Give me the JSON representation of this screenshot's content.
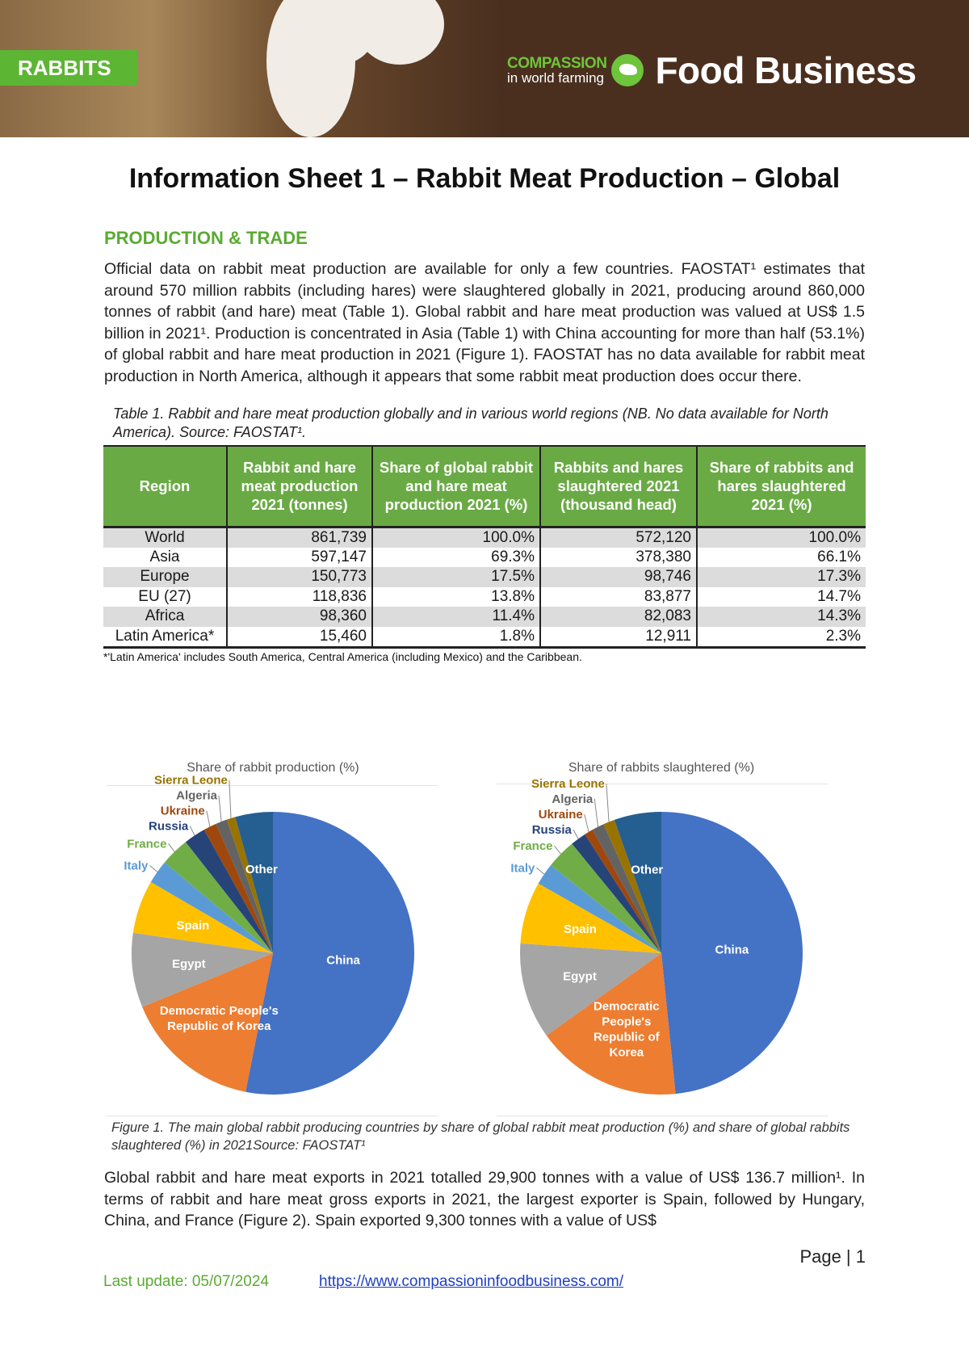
{
  "header": {
    "tag": "RABBITS",
    "logo_line1": "COMPASSION",
    "logo_line2": "in world farming",
    "logo_brand": "Food Business"
  },
  "title": "Information Sheet 1 – Rabbit Meat Production – Global",
  "section_heading": "PRODUCTION & TRADE",
  "paragraph1": "Official data on rabbit meat production are available for only a few countries. FAOSTAT¹ estimates that around 570 million rabbits (including hares) were slaughtered globally in 2021, producing around 860,000 tonnes of rabbit (and hare) meat (Table 1). Global rabbit and hare meat production was valued at US$ 1.5 billion in 2021¹. Production is concentrated in Asia (Table 1) with China accounting for more than half (53.1%) of global rabbit and hare meat production in 2021 (Figure 1). FAOSTAT has no data available for rabbit meat production in North America, although it appears that some rabbit meat production does occur there.",
  "table": {
    "caption": "Table 1. Rabbit and hare meat production globally and in various world regions (NB. No data available for North America). Source: FAOSTAT¹.",
    "headers": [
      "Region",
      "Rabbit and hare meat production 2021 (tonnes)",
      "Share of global rabbit and hare meat production 2021 (%)",
      "Rabbits and hares slaughtered 2021 (thousand head)",
      "Share of rabbits and hares slaughtered 2021 (%)"
    ],
    "rows": [
      [
        "World",
        "861,739",
        "100.0%",
        "572,120",
        "100.0%"
      ],
      [
        "Asia",
        "597,147",
        "69.3%",
        "378,380",
        "66.1%"
      ],
      [
        "Europe",
        "150,773",
        "17.5%",
        "98,746",
        "17.3%"
      ],
      [
        "EU (27)",
        "118,836",
        "13.8%",
        "83,877",
        "14.7%"
      ],
      [
        "Africa",
        "98,360",
        "11.4%",
        "82,083",
        "14.3%"
      ],
      [
        "Latin America*",
        "15,460",
        "1.8%",
        "12,911",
        "2.3%"
      ]
    ],
    "footnote": "*'Latin America' includes South America, Central America (including Mexico) and the Caribbean."
  },
  "chart_data": [
    {
      "type": "pie",
      "title": "Share of rabbit production (%)",
      "labels": [
        "China",
        "Democratic People's Republic of Korea",
        "Egypt",
        "Spain",
        "Italy",
        "France",
        "Russia",
        "Ukraine",
        "Algeria",
        "Sierra Leone",
        "Other"
      ],
      "values": [
        53.1,
        15.7,
        8.5,
        6.1,
        2.7,
        3.3,
        2.5,
        1.5,
        1.3,
        1.0,
        4.3
      ],
      "colors": [
        "#4472C4",
        "#ED7D31",
        "#A5A5A5",
        "#FFC000",
        "#5B9BD5",
        "#70AD47",
        "#264478",
        "#9E480E",
        "#636363",
        "#997300",
        "#255E91"
      ]
    },
    {
      "type": "pie",
      "title": "Share of rabbits slaughtered (%)",
      "labels": [
        "China",
        "Democratic People's Republic of Korea",
        "Egypt",
        "Spain",
        "Italy",
        "France",
        "Russia",
        "Ukraine",
        "Algeria",
        "Sierra Leone",
        "Other"
      ],
      "values": [
        48.4,
        16.7,
        11.0,
        7.1,
        2.5,
        3.4,
        1.8,
        1.0,
        1.4,
        1.3,
        5.4
      ],
      "colors": [
        "#4472C4",
        "#ED7D31",
        "#A5A5A5",
        "#FFC000",
        "#5B9BD5",
        "#70AD47",
        "#264478",
        "#9E480E",
        "#636363",
        "#997300",
        "#255E91"
      ]
    }
  ],
  "figure_caption": "Figure 1. The main global rabbit producing countries by share of global rabbit meat production (%) and share of global rabbits slaughtered (%) in 2021Source: FAOSTAT¹",
  "paragraph2": "Global rabbit and hare meat exports in 2021 totalled 29,900 tonnes with a value of US$ 136.7 million¹. In terms of rabbit and hare meat gross exports in 2021, the largest exporter is Spain, followed by Hungary, China, and France (Figure 2). Spain exported 9,300 tonnes with a value of US$",
  "footer": {
    "page": "Page | 1",
    "last_update": "Last update: 05/07/2024",
    "url": "https://www.compassioninfoodbusiness.com/"
  }
}
